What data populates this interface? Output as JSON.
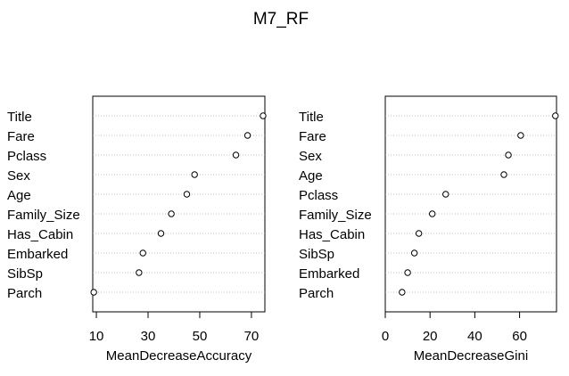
{
  "title": "M7_RF",
  "chart_data": [
    {
      "type": "scatter",
      "style": "dot chart",
      "xlabel": "MeanDecreaseAccuracy",
      "categories": [
        "Title",
        "Fare",
        "Pclass",
        "Sex",
        "Age",
        "Family_Size",
        "Has_Cabin",
        "Embarked",
        "SibSp",
        "Parch"
      ],
      "values": [
        74.5,
        68.5,
        64,
        48,
        45,
        39,
        35,
        28,
        26.5,
        9
      ],
      "xlim": [
        8.6,
        75.2
      ],
      "xticks": [
        10,
        30,
        50,
        70
      ],
      "grid": "dotted horizontal"
    },
    {
      "type": "scatter",
      "style": "dot chart",
      "xlabel": "MeanDecreaseGini",
      "categories": [
        "Title",
        "Fare",
        "Sex",
        "Age",
        "Pclass",
        "Family_Size",
        "Has_Cabin",
        "SibSp",
        "Embarked",
        "Parch"
      ],
      "values": [
        76,
        60.5,
        55,
        53,
        27,
        21,
        15,
        13,
        10,
        7.5
      ],
      "xlim": [
        0,
        76.5
      ],
      "xticks": [
        0,
        20,
        40,
        60
      ],
      "grid": "dotted horizontal"
    }
  ]
}
